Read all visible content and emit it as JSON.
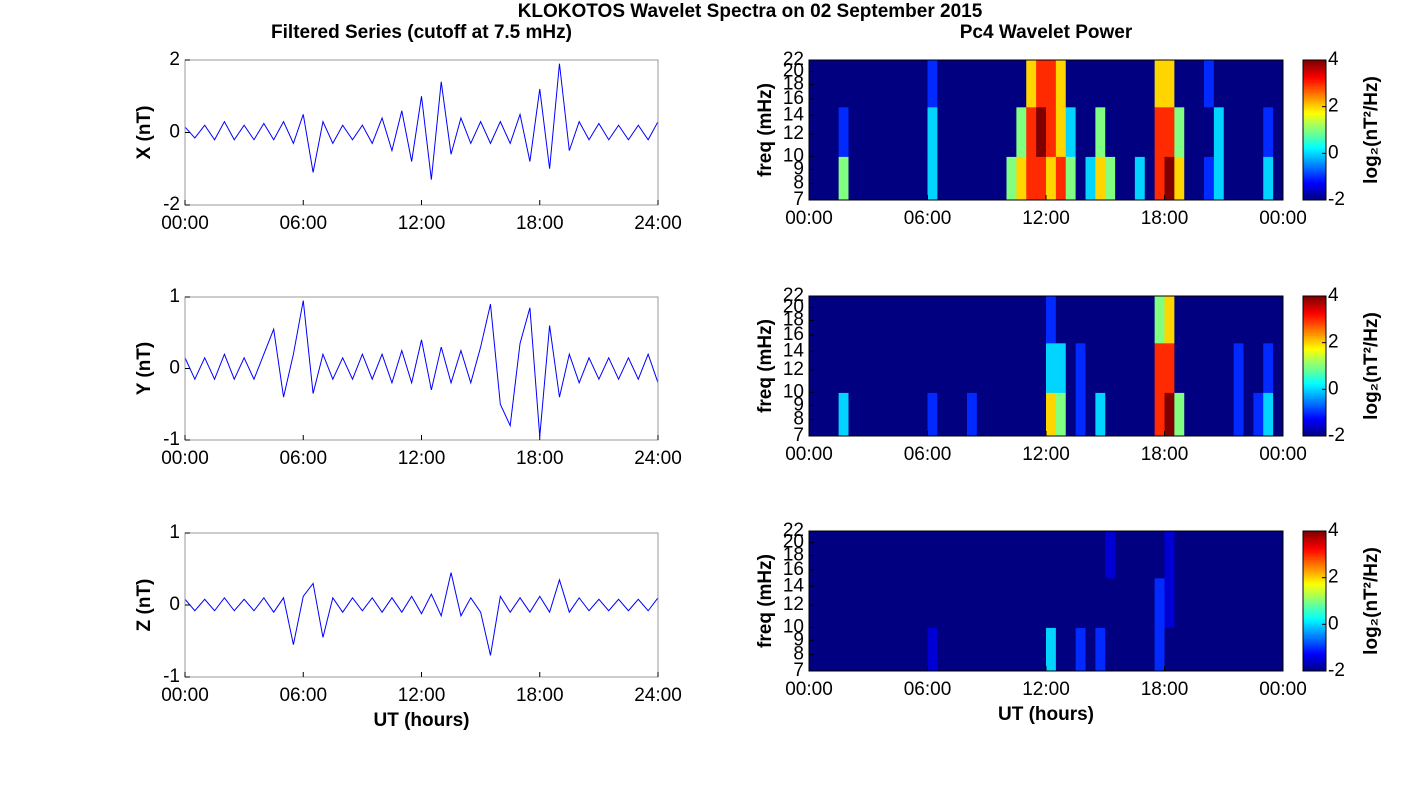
{
  "title": "KLOKOTOS Wavelet Spectra on 02 September 2015",
  "chart_data": [
    {
      "type": "line",
      "title": "Filtered Series (cutoff at 7.5 mHz)",
      "ylabel": "X (nT)",
      "color": "#0000ff",
      "x": [
        0,
        0.5,
        1,
        1.5,
        2,
        2.5,
        3,
        3.5,
        4,
        4.5,
        5,
        5.5,
        6,
        6.5,
        7,
        7.5,
        8,
        8.5,
        9,
        9.5,
        10,
        10.5,
        11,
        11.5,
        12,
        12.5,
        13,
        13.5,
        14,
        14.5,
        15,
        15.5,
        16,
        16.5,
        17,
        17.5,
        18,
        18.5,
        19,
        19.5,
        20,
        20.5,
        21,
        21.5,
        22,
        22.5,
        23,
        23.5,
        24
      ],
      "values": [
        0.15,
        -0.15,
        0.2,
        -0.2,
        0.3,
        -0.2,
        0.2,
        -0.2,
        0.25,
        -0.2,
        0.3,
        -0.3,
        0.5,
        -1.1,
        0.3,
        -0.3,
        0.2,
        -0.2,
        0.2,
        -0.3,
        0.4,
        -0.5,
        0.6,
        -0.8,
        1.0,
        -1.3,
        1.4,
        -0.6,
        0.4,
        -0.3,
        0.3,
        -0.3,
        0.3,
        -0.3,
        0.5,
        -0.8,
        1.2,
        -1.0,
        1.9,
        -0.5,
        0.3,
        -0.2,
        0.25,
        -0.2,
        0.2,
        -0.2,
        0.2,
        -0.2,
        0.3
      ],
      "xlim": [
        0,
        24
      ],
      "ylim": [
        -2,
        2
      ],
      "yticks": [
        -2,
        0,
        2
      ],
      "xticks": [
        {
          "value": 0,
          "label": "00:00"
        },
        {
          "value": 6,
          "label": "06:00"
        },
        {
          "value": 12,
          "label": "12:00"
        },
        {
          "value": 18,
          "label": "18:00"
        },
        {
          "value": 24,
          "label": "24:00"
        }
      ]
    },
    {
      "type": "heatmap",
      "title": "Pc4 Wavelet Power",
      "ylabel": "freq (mHz)",
      "xbins": [
        0,
        0.5,
        1,
        1.5,
        2,
        2.5,
        3,
        3.5,
        4,
        4.5,
        5,
        5.5,
        6,
        6.5,
        7,
        7.5,
        8,
        8.5,
        9,
        9.5,
        10,
        10.5,
        11,
        11.5,
        12,
        12.5,
        13,
        13.5,
        14,
        14.5,
        15,
        15.5,
        16,
        16.5,
        17,
        17.5,
        18,
        18.5,
        19,
        19.5,
        20,
        20.5,
        21,
        21.5,
        22,
        22.5,
        23,
        23.5,
        24
      ],
      "ybins": [
        7,
        10,
        15,
        22
      ],
      "z": [
        [
          -2,
          -2,
          -2,
          1,
          -2,
          -2,
          -2,
          -2,
          -2,
          -2,
          -2,
          -2,
          0,
          -2,
          -2,
          -2,
          -2,
          -2,
          -2,
          -2,
          1,
          2,
          3,
          3,
          2,
          3,
          1,
          -2,
          0,
          2,
          1,
          -2,
          -2,
          0,
          -2,
          3,
          4,
          2,
          -2,
          -2,
          -1,
          0,
          -2,
          -2,
          -2,
          -2,
          0,
          -2
        ],
        [
          -2,
          -2,
          -2,
          -1,
          -2,
          -2,
          -2,
          -2,
          -2,
          -2,
          -2,
          -2,
          0,
          -2,
          -2,
          -2,
          -2,
          -2,
          -2,
          -2,
          -2,
          1,
          3,
          4,
          3,
          2,
          0,
          -2,
          -2,
          1,
          -2,
          -2,
          -2,
          -2,
          -2,
          3,
          3,
          1,
          -2,
          -2,
          -2,
          0,
          -2,
          -2,
          -2,
          -2,
          -1,
          -2
        ],
        [
          -2,
          -2,
          -2,
          -2,
          -2,
          -2,
          -2,
          -2,
          -2,
          -2,
          -2,
          -2,
          -1,
          -2,
          -2,
          -2,
          -2,
          -2,
          -2,
          -2,
          -2,
          -2,
          2,
          3,
          3,
          2,
          -2,
          -2,
          -2,
          -2,
          -2,
          -2,
          -2,
          -2,
          -2,
          2,
          2,
          -2,
          -2,
          -2,
          -1,
          -2,
          -2,
          -2,
          -2,
          -2,
          -2,
          -2
        ]
      ],
      "xlim": [
        0,
        24
      ],
      "ylim": [
        7,
        22
      ],
      "yscale": "log",
      "yticks": [
        7,
        8,
        9,
        10,
        12,
        14,
        16,
        18,
        20,
        22
      ],
      "xticks": [
        {
          "value": 0,
          "label": "00:00"
        },
        {
          "value": 6,
          "label": "06:00"
        },
        {
          "value": 12,
          "label": "12:00"
        },
        {
          "value": 18,
          "label": "18:00"
        },
        {
          "value": 24,
          "label": "00:00"
        }
      ],
      "colormap": "jet",
      "clim": [
        -2,
        4
      ],
      "cticks": [
        -2,
        0,
        2,
        4
      ],
      "clabel": "log₂(nT²/Hz)"
    },
    {
      "type": "line",
      "ylabel": "Y (nT)",
      "color": "#0000ff",
      "x": [
        0,
        0.5,
        1,
        1.5,
        2,
        2.5,
        3,
        3.5,
        4,
        4.5,
        5,
        5.5,
        6,
        6.5,
        7,
        7.5,
        8,
        8.5,
        9,
        9.5,
        10,
        10.5,
        11,
        11.5,
        12,
        12.5,
        13,
        13.5,
        14,
        14.5,
        15,
        15.5,
        16,
        16.5,
        17,
        17.5,
        18,
        18.5,
        19,
        19.5,
        20,
        20.5,
        21,
        21.5,
        22,
        22.5,
        23,
        23.5,
        24
      ],
      "values": [
        0.15,
        -0.15,
        0.15,
        -0.15,
        0.2,
        -0.15,
        0.15,
        -0.15,
        0.2,
        0.55,
        -0.4,
        0.2,
        0.95,
        -0.35,
        0.2,
        -0.15,
        0.15,
        -0.15,
        0.2,
        -0.15,
        0.2,
        -0.2,
        0.25,
        -0.2,
        0.4,
        -0.3,
        0.3,
        -0.2,
        0.25,
        -0.2,
        0.3,
        0.9,
        -0.5,
        -0.8,
        0.35,
        0.85,
        -0.95,
        0.6,
        -0.4,
        0.2,
        -0.2,
        0.15,
        -0.15,
        0.15,
        -0.15,
        0.15,
        -0.15,
        0.2,
        -0.2
      ],
      "xlim": [
        0,
        24
      ],
      "ylim": [
        -1,
        1
      ],
      "yticks": [
        -1,
        0,
        1
      ],
      "xticks": [
        {
          "value": 0,
          "label": "00:00"
        },
        {
          "value": 6,
          "label": "06:00"
        },
        {
          "value": 12,
          "label": "12:00"
        },
        {
          "value": 18,
          "label": "18:00"
        },
        {
          "value": 24,
          "label": "24:00"
        }
      ]
    },
    {
      "type": "heatmap",
      "ylabel": "freq (mHz)",
      "xbins": [
        0,
        0.5,
        1,
        1.5,
        2,
        2.5,
        3,
        3.5,
        4,
        4.5,
        5,
        5.5,
        6,
        6.5,
        7,
        7.5,
        8,
        8.5,
        9,
        9.5,
        10,
        10.5,
        11,
        11.5,
        12,
        12.5,
        13,
        13.5,
        14,
        14.5,
        15,
        15.5,
        16,
        16.5,
        17,
        17.5,
        18,
        18.5,
        19,
        19.5,
        20,
        20.5,
        21,
        21.5,
        22,
        22.5,
        23,
        23.5,
        24
      ],
      "ybins": [
        7,
        10,
        15,
        22
      ],
      "z": [
        [
          -2,
          -2,
          -2,
          0,
          -2,
          -2,
          -2,
          -2,
          -2,
          -2,
          -2,
          -2,
          -1,
          -2,
          -2,
          -2,
          -1,
          -2,
          -2,
          -2,
          -2,
          -2,
          -2,
          -2,
          2,
          1,
          -2,
          -1,
          -2,
          0,
          -2,
          -2,
          -2,
          -2,
          -2,
          3,
          4,
          1,
          -2,
          -2,
          -2,
          -2,
          -2,
          -1,
          -2,
          -1,
          0,
          -2
        ],
        [
          -2,
          -2,
          -2,
          -2,
          -2,
          -2,
          -2,
          -2,
          -2,
          -2,
          -2,
          -2,
          -2,
          -2,
          -2,
          -2,
          -2,
          -2,
          -2,
          -2,
          -2,
          -2,
          -2,
          -2,
          0,
          0,
          -2,
          -1,
          -2,
          -2,
          -2,
          -2,
          -2,
          -2,
          -2,
          3,
          3,
          -2,
          -2,
          -2,
          -2,
          -2,
          -2,
          -1,
          -2,
          -2,
          -1,
          -2
        ],
        [
          -2,
          -2,
          -2,
          -2,
          -2,
          -2,
          -2,
          -2,
          -2,
          -2,
          -2,
          -2,
          -2,
          -2,
          -2,
          -2,
          -2,
          -2,
          -2,
          -2,
          -2,
          -2,
          -2,
          -2,
          -1,
          -2,
          -2,
          -2,
          -2,
          -2,
          -2,
          -2,
          -2,
          -2,
          -2,
          1,
          2,
          -2,
          -2,
          -2,
          -2,
          -2,
          -2,
          -2,
          -2,
          -2,
          -2,
          -2
        ]
      ],
      "xlim": [
        0,
        24
      ],
      "ylim": [
        7,
        22
      ],
      "yscale": "log",
      "yticks": [
        7,
        8,
        9,
        10,
        12,
        14,
        16,
        18,
        20,
        22
      ],
      "xticks": [
        {
          "value": 0,
          "label": "00:00"
        },
        {
          "value": 6,
          "label": "06:00"
        },
        {
          "value": 12,
          "label": "12:00"
        },
        {
          "value": 18,
          "label": "18:00"
        },
        {
          "value": 24,
          "label": "00:00"
        }
      ],
      "colormap": "jet",
      "clim": [
        -2,
        4
      ],
      "cticks": [
        -2,
        0,
        2,
        4
      ],
      "clabel": "log₂(nT²/Hz)"
    },
    {
      "type": "line",
      "ylabel": "Z (nT)",
      "xlabel": "UT (hours)",
      "color": "#0000ff",
      "x": [
        0,
        0.5,
        1,
        1.5,
        2,
        2.5,
        3,
        3.5,
        4,
        4.5,
        5,
        5.5,
        6,
        6.5,
        7,
        7.5,
        8,
        8.5,
        9,
        9.5,
        10,
        10.5,
        11,
        11.5,
        12,
        12.5,
        13,
        13.5,
        14,
        14.5,
        15,
        15.5,
        16,
        16.5,
        17,
        17.5,
        18,
        18.5,
        19,
        19.5,
        20,
        20.5,
        21,
        21.5,
        22,
        22.5,
        23,
        23.5,
        24
      ],
      "values": [
        0.08,
        -0.08,
        0.08,
        -0.08,
        0.1,
        -0.08,
        0.08,
        -0.08,
        0.1,
        -0.1,
        0.1,
        -0.55,
        0.12,
        0.3,
        -0.45,
        0.1,
        -0.1,
        0.1,
        -0.08,
        0.1,
        -0.1,
        0.1,
        -0.1,
        0.12,
        -0.12,
        0.15,
        -0.15,
        0.45,
        -0.15,
        0.1,
        -0.1,
        -0.7,
        0.12,
        -0.1,
        0.1,
        -0.1,
        0.12,
        -0.1,
        0.35,
        -0.1,
        0.1,
        -0.08,
        0.08,
        -0.08,
        0.08,
        -0.08,
        0.08,
        -0.08,
        0.1
      ],
      "xlim": [
        0,
        24
      ],
      "ylim": [
        -1,
        1
      ],
      "yticks": [
        -1,
        0,
        1
      ],
      "xticks": [
        {
          "value": 0,
          "label": "00:00"
        },
        {
          "value": 6,
          "label": "06:00"
        },
        {
          "value": 12,
          "label": "12:00"
        },
        {
          "value": 18,
          "label": "18:00"
        },
        {
          "value": 24,
          "label": "24:00"
        }
      ]
    },
    {
      "type": "heatmap",
      "ylabel": "freq (mHz)",
      "xlabel": "UT (hours)",
      "xbins": [
        0,
        0.5,
        1,
        1.5,
        2,
        2.5,
        3,
        3.5,
        4,
        4.5,
        5,
        5.5,
        6,
        6.5,
        7,
        7.5,
        8,
        8.5,
        9,
        9.5,
        10,
        10.5,
        11,
        11.5,
        12,
        12.5,
        13,
        13.5,
        14,
        14.5,
        15,
        15.5,
        16,
        16.5,
        17,
        17.5,
        18,
        18.5,
        19,
        19.5,
        20,
        20.5,
        21,
        21.5,
        22,
        22.5,
        23,
        23.5,
        24
      ],
      "ybins": [
        7,
        10,
        15,
        22
      ],
      "z": [
        [
          -2,
          -2,
          -2,
          -2,
          -2,
          -2,
          -2,
          -2,
          -2,
          -2,
          -2,
          -2,
          -1.5,
          -2,
          -2,
          -2,
          -2,
          -2,
          -2,
          -2,
          -2,
          -2,
          -2,
          -2,
          0,
          -2,
          -2,
          -1,
          -2,
          -1,
          -2,
          -2,
          -2,
          -2,
          -2,
          -1,
          -2,
          -2,
          -2,
          -2,
          -2,
          -2,
          -2,
          -2,
          -2,
          -2,
          -2,
          -2
        ],
        [
          -2,
          -2,
          -2,
          -2,
          -2,
          -2,
          -2,
          -2,
          -2,
          -2,
          -2,
          -2,
          -2,
          -2,
          -2,
          -2,
          -2,
          -2,
          -2,
          -2,
          -2,
          -2,
          -2,
          -2,
          -2,
          -2,
          -2,
          -2,
          -2,
          -2,
          -2,
          -2,
          -2,
          -2,
          -2,
          -1,
          -1.5,
          -2,
          -2,
          -2,
          -2,
          -2,
          -2,
          -2,
          -2,
          -2,
          -2,
          -2
        ],
        [
          -2,
          -2,
          -2,
          -2,
          -2,
          -2,
          -2,
          -2,
          -2,
          -2,
          -2,
          -2,
          -2,
          -2,
          -2,
          -2,
          -2,
          -2,
          -2,
          -2,
          -2,
          -2,
          -2,
          -2,
          -2,
          -2,
          -2,
          -2,
          -2,
          -2,
          -1.5,
          -2,
          -2,
          -2,
          -2,
          -2,
          -1.5,
          -2,
          -2,
          -2,
          -2,
          -2,
          -2,
          -2,
          -2,
          -2,
          -2,
          -2
        ]
      ],
      "xlim": [
        0,
        24
      ],
      "ylim": [
        7,
        22
      ],
      "yscale": "log",
      "yticks": [
        7,
        8,
        9,
        10,
        12,
        14,
        16,
        18,
        20,
        22
      ],
      "xticks": [
        {
          "value": 0,
          "label": "00:00"
        },
        {
          "value": 6,
          "label": "06:00"
        },
        {
          "value": 12,
          "label": "12:00"
        },
        {
          "value": 18,
          "label": "18:00"
        },
        {
          "value": 24,
          "label": "00:00"
        }
      ],
      "colormap": "jet",
      "clim": [
        -2,
        4
      ],
      "cticks": [
        -2,
        0,
        2,
        4
      ],
      "clabel": "log₂(nT²/Hz)"
    }
  ]
}
